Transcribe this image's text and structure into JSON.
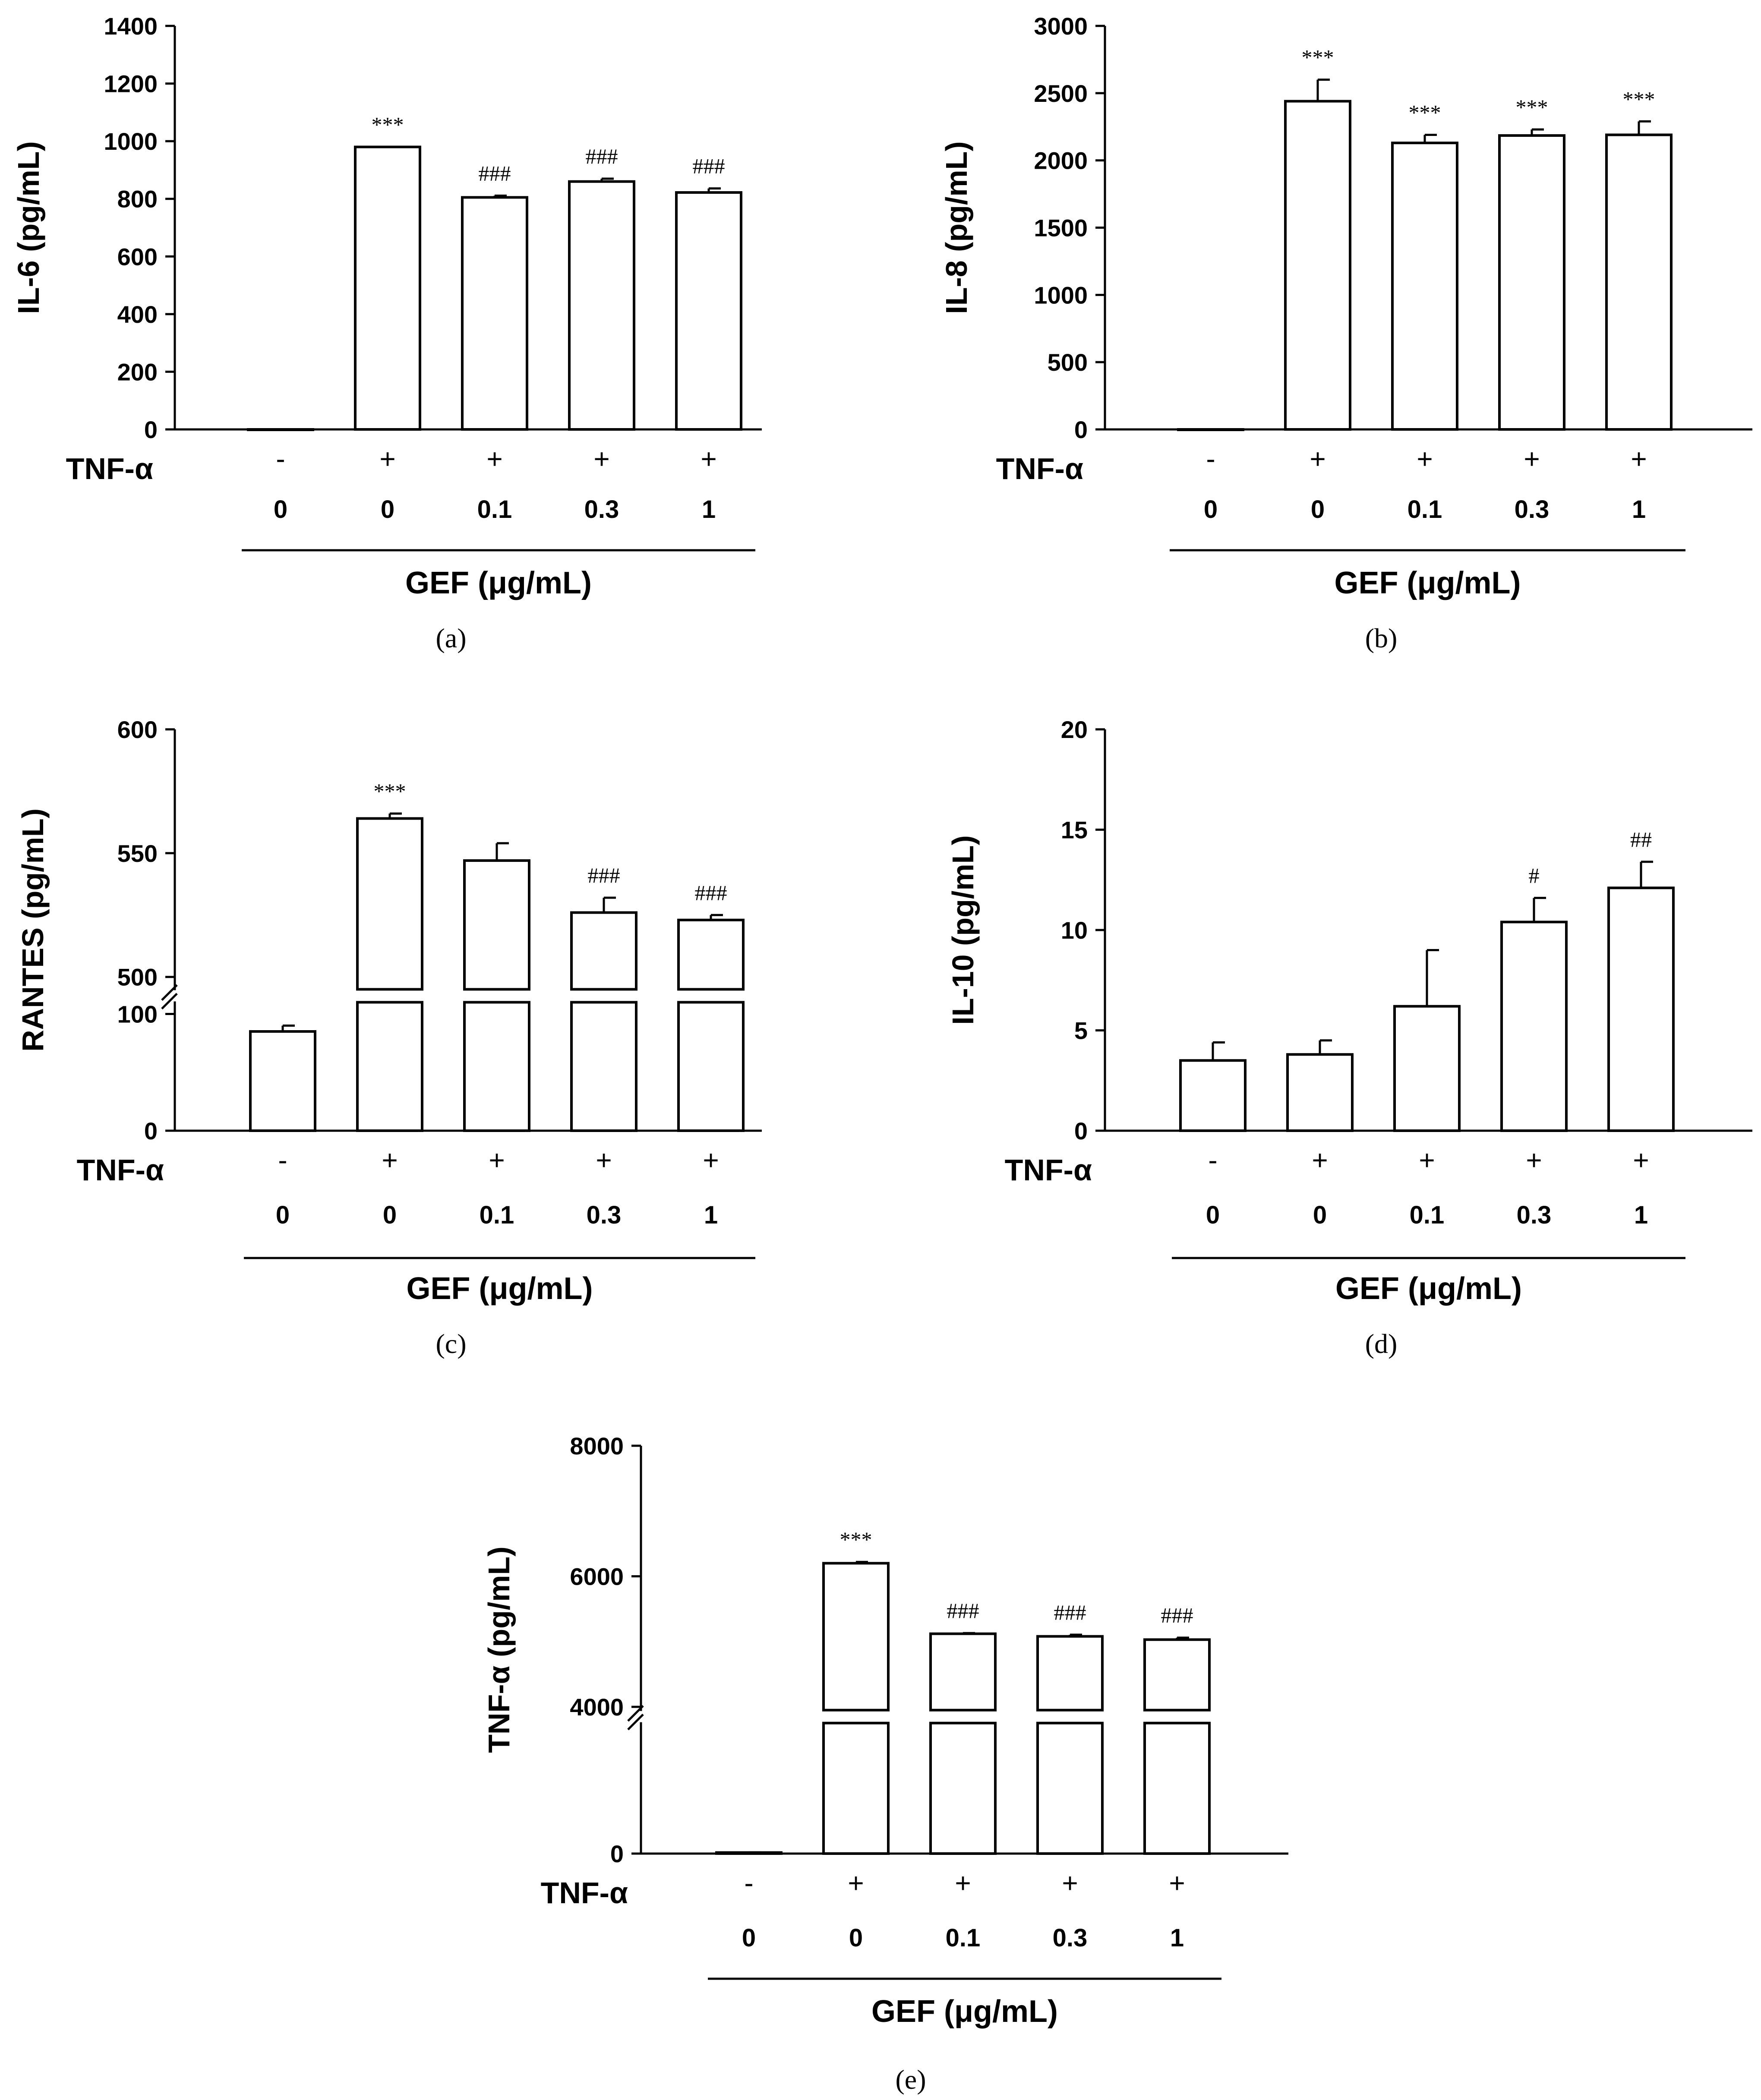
{
  "chart_data": [
    {
      "panel": "a",
      "type": "bar",
      "ylabel": "IL-6 (pg/mL)",
      "ylim": [
        0,
        1400
      ],
      "yticks": [
        0,
        200,
        400,
        600,
        800,
        1000,
        1200,
        1400
      ],
      "ytick_labels": [
        "0",
        "200",
        "400",
        "600",
        "800",
        "1000",
        "1200",
        "1400"
      ],
      "row_label": "TNF-α",
      "tnf": [
        "-",
        "+",
        "+",
        "+",
        "+"
      ],
      "gef": [
        "0",
        "0",
        "0.1",
        "0.3",
        "1"
      ],
      "group_label": "GEF (μg/mL)",
      "values": [
        0,
        980,
        805,
        860,
        822
      ],
      "errors": [
        0,
        0,
        6,
        10,
        14
      ],
      "significance": [
        "",
        "***",
        "###",
        "###",
        "###"
      ]
    },
    {
      "panel": "b",
      "type": "bar",
      "ylabel": "IL-8 (pg/mL)",
      "ylim": [
        0,
        3000
      ],
      "yticks": [
        0,
        500,
        1000,
        1500,
        2000,
        2500,
        3000
      ],
      "ytick_labels": [
        "0",
        "500",
        "1000",
        "1500",
        "2000",
        "2500",
        "3000"
      ],
      "row_label": "TNF-α",
      "tnf": [
        "-",
        "+",
        "+",
        "+",
        "+"
      ],
      "gef": [
        "0",
        "0",
        "0.1",
        "0.3",
        "1"
      ],
      "group_label": "GEF (μg/mL)",
      "values": [
        0,
        2440,
        2130,
        2185,
        2190
      ],
      "errors": [
        0,
        160,
        60,
        45,
        100
      ],
      "significance": [
        "",
        "***",
        "***",
        "***",
        "***"
      ]
    },
    {
      "panel": "c",
      "type": "bar",
      "ylabel": "RANTES (pg/mL)",
      "ylim": [
        0,
        600
      ],
      "axis_break": {
        "lower": [
          0,
          110
        ],
        "upper": [
          495,
          600
        ]
      },
      "yticks": [
        0,
        100,
        500,
        550,
        600
      ],
      "ytick_labels": [
        "0",
        "100",
        "500",
        "550",
        "600"
      ],
      "row_label": "TNF-α",
      "tnf": [
        "-",
        "+",
        "+",
        "+",
        "+"
      ],
      "gef": [
        "0",
        "0",
        "0.1",
        "0.3",
        "1"
      ],
      "group_label": "GEF (μg/mL)",
      "values": [
        85,
        564,
        547,
        526,
        523
      ],
      "errors": [
        5,
        2,
        7,
        6,
        2
      ],
      "significance": [
        "",
        "***",
        "",
        "###",
        "###"
      ]
    },
    {
      "panel": "d",
      "type": "bar",
      "ylabel": "IL-10 (pg/mL)",
      "ylim": [
        0,
        20
      ],
      "yticks": [
        0,
        5,
        10,
        15,
        20
      ],
      "ytick_labels": [
        "0",
        "5",
        "10",
        "15",
        "20"
      ],
      "row_label": "TNF-α",
      "tnf": [
        "-",
        "+",
        "+",
        "+",
        "+"
      ],
      "gef": [
        "0",
        "0",
        "0.1",
        "0.3",
        "1"
      ],
      "group_label": "GEF (μg/mL)",
      "values": [
        3.5,
        3.8,
        6.2,
        10.4,
        12.1
      ],
      "errors": [
        0.9,
        0.7,
        2.8,
        1.2,
        1.3
      ],
      "significance": [
        "",
        "",
        "",
        "#",
        "##"
      ]
    },
    {
      "panel": "e",
      "type": "bar",
      "ylabel": "TNF-α (pg/mL)",
      "ylim": [
        0,
        8000
      ],
      "axis_break": {
        "lower": [
          0,
          3800
        ],
        "upper": [
          3950,
          8000
        ]
      },
      "yticks": [
        0,
        4000,
        6000,
        8000
      ],
      "ytick_labels": [
        "0",
        "4000",
        "6000",
        "8000"
      ],
      "row_label": "TNF-α",
      "tnf": [
        "-",
        "+",
        "+",
        "+",
        "+"
      ],
      "gef": [
        "0",
        "0",
        "0.1",
        "0.3",
        "1"
      ],
      "group_label": "GEF (μg/mL)",
      "values": [
        30,
        6200,
        5120,
        5080,
        5030
      ],
      "errors": [
        5,
        20,
        10,
        25,
        30
      ],
      "significance": [
        "",
        "***",
        "###",
        "###",
        "###"
      ]
    }
  ],
  "panel_tags": [
    "(a)",
    "(b)",
    "(c)",
    "(d)",
    "(e)"
  ]
}
